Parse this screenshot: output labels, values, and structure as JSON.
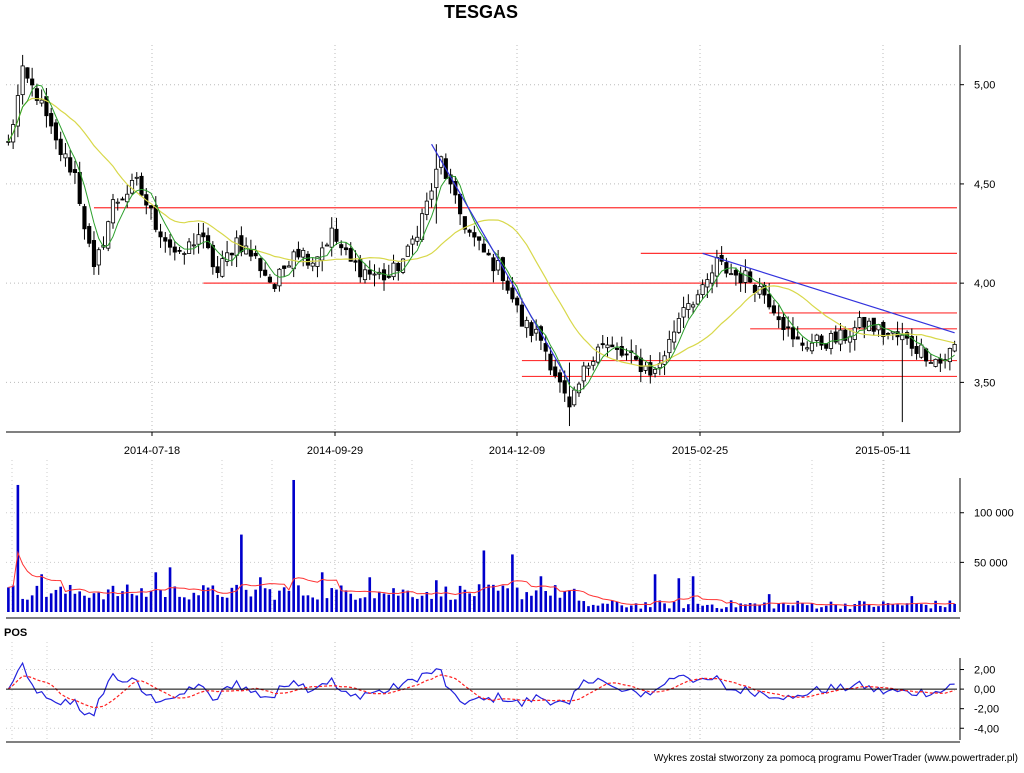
{
  "chart_data": {
    "type": "candlestick",
    "title": "TESGAS",
    "footer": "Wykres został stworzony za pomocą programu PowerTrader (www.powertrader.pl)",
    "x_tick_labels": [
      "2014-07-18",
      "2014-09-29",
      "2014-12-09",
      "2015-02-25",
      "2015-05-11"
    ],
    "price": {
      "ylim": [
        3.25,
        5.2
      ],
      "y_ticks": [
        {
          "value": 3.5,
          "label": "3,50"
        },
        {
          "value": 4.0,
          "label": "4,00"
        },
        {
          "value": 4.5,
          "label": "4,50"
        },
        {
          "value": 5.0,
          "label": "5,00"
        }
      ],
      "close_path": [
        [
          0,
          4.7
        ],
        [
          3,
          5.05
        ],
        [
          6,
          4.95
        ],
        [
          10,
          4.7
        ],
        [
          14,
          4.55
        ],
        [
          18,
          4.05
        ],
        [
          22,
          4.4
        ],
        [
          27,
          4.5
        ],
        [
          31,
          4.3
        ],
        [
          36,
          4.12
        ],
        [
          40,
          4.25
        ],
        [
          44,
          4.05
        ],
        [
          48,
          4.22
        ],
        [
          52,
          4.12
        ],
        [
          56,
          3.98
        ],
        [
          60,
          4.18
        ],
        [
          64,
          4.12
        ],
        [
          68,
          4.25
        ],
        [
          72,
          4.1
        ],
        [
          76,
          4.05
        ],
        [
          80,
          4.03
        ],
        [
          84,
          4.15
        ],
        [
          88,
          4.4
        ],
        [
          91,
          4.62
        ],
        [
          94,
          4.4
        ],
        [
          97,
          4.25
        ],
        [
          100,
          4.15
        ],
        [
          104,
          4.05
        ],
        [
          108,
          3.8
        ],
        [
          112,
          3.72
        ],
        [
          115,
          3.55
        ],
        [
          118,
          3.35
        ],
        [
          121,
          3.55
        ],
        [
          124,
          3.7
        ],
        [
          128,
          3.65
        ],
        [
          132,
          3.6
        ],
        [
          136,
          3.55
        ],
        [
          139,
          3.7
        ],
        [
          142,
          3.9
        ],
        [
          146,
          3.95
        ],
        [
          149,
          4.1
        ],
        [
          152,
          4.05
        ],
        [
          156,
          4.02
        ],
        [
          159,
          3.95
        ],
        [
          162,
          3.85
        ],
        [
          165,
          3.7
        ],
        [
          170,
          3.7
        ],
        [
          175,
          3.72
        ],
        [
          180,
          3.8
        ],
        [
          184,
          3.75
        ],
        [
          188,
          3.72
        ],
        [
          193,
          3.65
        ],
        [
          196,
          3.6
        ],
        [
          199,
          3.68
        ]
      ],
      "wick_extremes": [
        {
          "i": 3,
          "high": 5.15,
          "low": 4.9
        },
        {
          "i": 90,
          "high": 4.7,
          "low": 4.3
        },
        {
          "i": 118,
          "high": 3.6,
          "low": 3.28
        },
        {
          "i": 188,
          "high": 3.8,
          "low": 3.3
        }
      ],
      "moving_averages": [
        {
          "color": "#d8d84a",
          "window": 20
        },
        {
          "color": "#2ca02c",
          "window": 5
        }
      ],
      "horizontal_lines": [
        {
          "value": 4.38,
          "from_i": 18,
          "to_i": 200,
          "color": "#ff3333"
        },
        {
          "value": 4.0,
          "from_i": 41,
          "to_i": 200,
          "color": "#ff3333"
        },
        {
          "value": 4.15,
          "from_i": 133,
          "to_i": 200,
          "color": "#ff3333"
        },
        {
          "value": 3.85,
          "from_i": 160,
          "to_i": 200,
          "color": "#ff3333"
        },
        {
          "value": 3.77,
          "from_i": 156,
          "to_i": 200,
          "color": "#ff3333"
        },
        {
          "value": 3.61,
          "from_i": 108,
          "to_i": 200,
          "color": "#ff3333"
        },
        {
          "value": 3.53,
          "from_i": 108,
          "to_i": 200,
          "color": "#ff3333"
        }
      ],
      "trend_lines": [
        {
          "from": [
            89,
            4.7
          ],
          "to": [
            118,
            3.5
          ],
          "color": "#3333dd"
        },
        {
          "from": [
            146,
            4.15
          ],
          "to": [
            199,
            3.75
          ],
          "color": "#3333dd"
        }
      ]
    },
    "volume": {
      "ylim": [
        0,
        135000
      ],
      "y_ticks": [
        {
          "value": 50000,
          "label": "50 000"
        },
        {
          "value": 100000,
          "label": "100 000"
        }
      ],
      "spikes": [
        {
          "i": 2,
          "value": 128000
        },
        {
          "i": 7,
          "value": 38000
        },
        {
          "i": 31,
          "value": 40000
        },
        {
          "i": 34,
          "value": 45000
        },
        {
          "i": 49,
          "value": 78000
        },
        {
          "i": 53,
          "value": 35000
        },
        {
          "i": 60,
          "value": 133000
        },
        {
          "i": 66,
          "value": 40000
        },
        {
          "i": 76,
          "value": 35000
        },
        {
          "i": 90,
          "value": 32000
        },
        {
          "i": 100,
          "value": 62000
        },
        {
          "i": 106,
          "value": 58000
        },
        {
          "i": 112,
          "value": 36000
        },
        {
          "i": 136,
          "value": 38000
        },
        {
          "i": 141,
          "value": 34000
        },
        {
          "i": 144,
          "value": 36000
        },
        {
          "i": 160,
          "value": 18000
        },
        {
          "i": 190,
          "value": 16000
        }
      ],
      "ma_color": "#ff3333",
      "bar_color": "#0000cc"
    },
    "oscillator": {
      "label": "POS",
      "ylim": [
        -5.2,
        4.2
      ],
      "y_ticks": [
        {
          "value": 2.0,
          "label": "2,00"
        },
        {
          "value": 0.0,
          "label": "0,00"
        },
        {
          "value": -2.0,
          "label": "-2,00"
        },
        {
          "value": -4.0,
          "label": "-4,00"
        }
      ],
      "line_color": "#2222dd",
      "signal_color": "#ff2222"
    }
  }
}
